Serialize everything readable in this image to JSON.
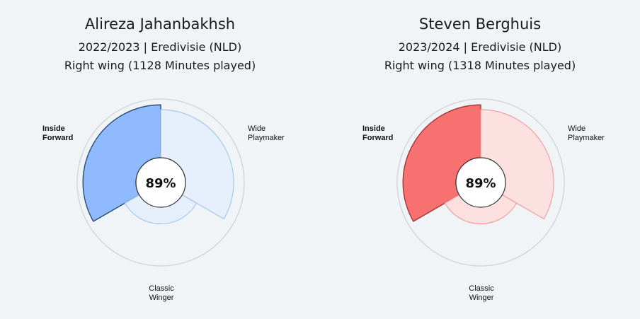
{
  "chart_data": [
    {
      "type": "radial_bar",
      "title": "Alireza Jahanbakhsh",
      "subtitle_season": "2022/2023 | Eredivisie (NLD)",
      "subtitle_role": "Right wing (1128 Minutes played)",
      "center_label": "89%",
      "categories": [
        "Inside Forward",
        "Wide Playmaker",
        "Classic Winger"
      ],
      "category_label_lines": [
        [
          "Inside",
          "Forward"
        ],
        [
          "Wide",
          "Playmaker"
        ],
        [
          "Classic",
          "Winger"
        ]
      ],
      "values": [
        89,
        81,
        28
      ],
      "highlighted": "Inside Forward",
      "ylim": [
        0,
        100
      ],
      "colors": {
        "highlight": "#8fbaff",
        "highlight_stroke": "#2b4d75",
        "muted": "#e6f0fc",
        "muted_stroke": "#9fc4ef"
      }
    },
    {
      "type": "radial_bar",
      "title": "Steven Berghuis",
      "subtitle_season": "2023/2024 | Eredivisie (NLD)",
      "subtitle_role": "Right wing (1318 Minutes played)",
      "center_label": "89%",
      "categories": [
        "Inside Forward",
        "Wide Playmaker",
        "Classic Winger"
      ],
      "category_label_lines": [
        [
          "Inside",
          "Forward"
        ],
        [
          "Wide",
          "Playmaker"
        ],
        [
          "Classic",
          "Winger"
        ]
      ],
      "values": [
        89,
        81,
        28
      ],
      "highlighted": "Inside Forward",
      "ylim": [
        0,
        100
      ],
      "colors": {
        "highlight": "#f87171",
        "highlight_stroke": "#a83434",
        "muted": "#fde0e0",
        "muted_stroke": "#f29a9a"
      }
    }
  ],
  "colors": {
    "background": "#f0f4f7",
    "outer_ring": "#d3d6da",
    "center_fill": "#ffffff",
    "center_stroke": "#333333"
  }
}
